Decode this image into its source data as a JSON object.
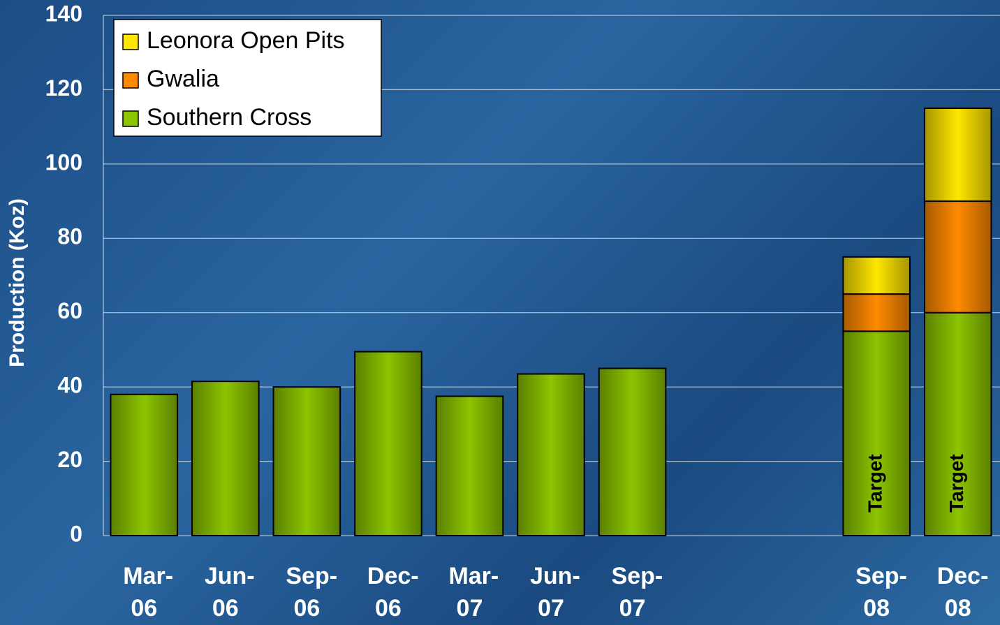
{
  "chart_data": {
    "type": "stacked_bar",
    "y_label": "Production (Koz)",
    "categories": [
      "Mar-06",
      "Jun-06",
      "Sep-06",
      "Dec-06",
      "Mar-07",
      "Jun-07",
      "Sep-07",
      null,
      null,
      "Sep-08",
      "Dec-08"
    ],
    "series": [
      {
        "name": "Southern Cross",
        "color": "#8cc400",
        "values": [
          38,
          41.5,
          40,
          49.5,
          37.5,
          43.5,
          45,
          null,
          null,
          55,
          60
        ]
      },
      {
        "name": "Gwalia",
        "color": "#ff8a00",
        "values": [
          null,
          null,
          null,
          null,
          null,
          null,
          null,
          null,
          null,
          10,
          30
        ]
      },
      {
        "name": "Leonora Open Pits",
        "color": "#ffe600",
        "values": [
          null,
          null,
          null,
          null,
          null,
          null,
          null,
          null,
          null,
          10,
          25
        ]
      }
    ],
    "annotations": [
      "Target",
      "Target"
    ],
    "ylim": [
      0,
      140
    ],
    "yticks": [
      0,
      20,
      40,
      60,
      80,
      100,
      120,
      140
    ],
    "grid": true,
    "legend": "upper left"
  }
}
